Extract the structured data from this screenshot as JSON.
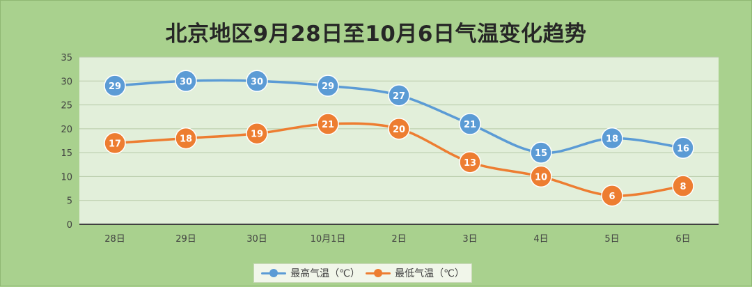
{
  "colors": {
    "background": "#a9d18e",
    "plot_area": "#e2efda",
    "high": "#5b9bd5",
    "low": "#ed7d31"
  },
  "chart_data": {
    "type": "line",
    "title": "北京地区9月28日至10月6日气温变化趋势",
    "categories": [
      "28日",
      "29日",
      "30日",
      "10月1日",
      "2日",
      "3日",
      "4日",
      "5日",
      "6日"
    ],
    "series": [
      {
        "name": "最高气温（℃）",
        "values": [
          29,
          30,
          30,
          29,
          27,
          21,
          15,
          18,
          16
        ]
      },
      {
        "name": "最低气温（℃）",
        "values": [
          17,
          18,
          19,
          21,
          20,
          13,
          10,
          6,
          8
        ]
      }
    ],
    "ylim": [
      0,
      35
    ],
    "yticks": [
      0,
      5,
      10,
      15,
      20,
      25,
      30,
      35
    ],
    "grid": true,
    "smooth": true,
    "data_labels": true,
    "legend": "bottom"
  }
}
